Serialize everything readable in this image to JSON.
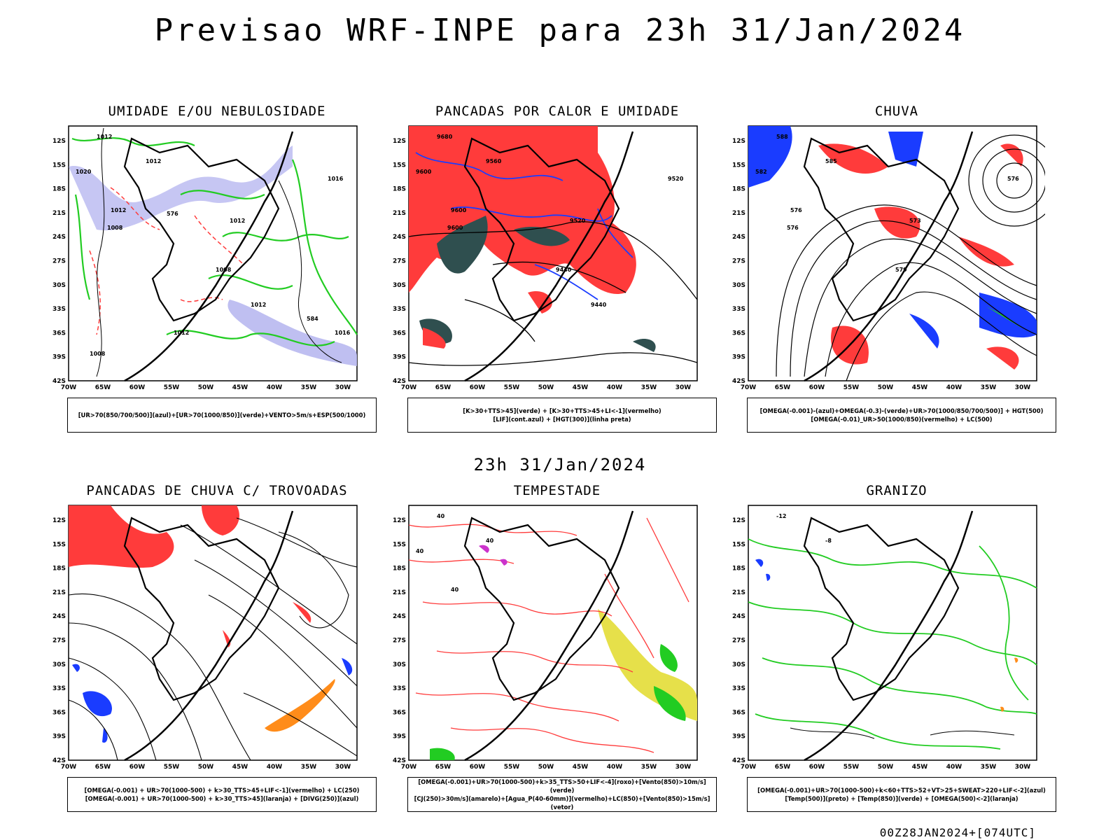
{
  "main_title": "Previsao WRF-INPE  para 23h 31/Jan/2024",
  "mid_title": "23h 31/Jan/2024",
  "footer": "00Z28JAN2024+[074UTC]",
  "lat_labels": [
    "12S",
    "15S",
    "18S",
    "21S",
    "24S",
    "27S",
    "30S",
    "33S",
    "36S",
    "39S",
    "42S"
  ],
  "lon_labels": [
    "70W",
    "65W",
    "60W",
    "55W",
    "50W",
    "45W",
    "40W",
    "35W",
    "30W"
  ],
  "panels": [
    {
      "title": "UMIDADE E/OU NEBULOSIDADE",
      "legend": [
        "[UR>70(850/700/500)](azul)+[UR>70(1000/850)](verde)+VENTO>5m/s+ESP(500/1000)"
      ],
      "contour_labels": [
        "1012",
        "1012",
        "1020",
        "1012",
        "1008",
        "1012",
        "1008",
        "1016",
        "1012",
        "576",
        "1012",
        "1008",
        "584",
        "1016"
      ]
    },
    {
      "title": "PANCADAS POR CALOR E UMIDADE",
      "legend": [
        "[K>30+TTS>45](verde) + [K>30+TTS>45+LI<-1](vermelho)",
        "[LIF](cont.azul) + [HGT(300)](linha preta)"
      ],
      "contour_labels": [
        "9680",
        "9560",
        "9600",
        "9600",
        "9600",
        "9520",
        "9440",
        "9520",
        "9440"
      ]
    },
    {
      "title": "CHUVA",
      "legend": [
        "[OMEGA(-0.001)-(azul)+OMEGA(-0.3)-(verde)+UR>70(1000/850/700/500)] + HGT(500)",
        "[OMEGA(-0.01)_UR>50(1000/850)(vermelho) + LC(500)"
      ],
      "contour_labels": [
        "588",
        "585",
        "582",
        "576",
        "576",
        "573",
        "579",
        "576"
      ]
    },
    {
      "title": "PANCADAS DE CHUVA C/ TROVOADAS",
      "legend": [
        "[OMEGA(-0.001) + UR>70(1000-500) + k>30_TTS>45+LIF<-1](vermelho) + LC(250)",
        "[OMEGA(-0.001) + UR>70(1000-500) + k>30_TTS>45](laranja) + [DIVG(250)](azul)"
      ],
      "contour_labels": []
    },
    {
      "title": "TEMPESTADE",
      "legend": [
        "[OMEGA(-0.001)+UR>70(1000-500)+k>35_TTS>50+LIF<-4](roxo)+[Vento(850)>10m/s](verde)",
        "[CJ(250)>30m/s](amarelo)+[Agua_P(40-60mm)](vermelho)+LC(850)+[Vento(850)>15m/s](vetor)"
      ],
      "contour_labels": [
        "40",
        "40",
        "40",
        "40"
      ]
    },
    {
      "title": "GRANIZO",
      "legend": [
        "[OMEGA(-0.001)+UR>70(1000-500)+k<60+TTS>52+VT>25+SWEAT>220+LIF<-2](azul)",
        "[Temp(500)](preto) + [Temp(850)](verde) + [OMEGA(500)<-2](laranja)"
      ],
      "contour_labels": [
        "-12",
        "-8"
      ]
    }
  ],
  "colors": {
    "red": "#ff3b3b",
    "green": "#22cc22",
    "blue": "#1a3cff",
    "lavender": "#b8b8f0",
    "teal": "#2f4f4f",
    "yellow": "#e6e04a",
    "orange": "#ff8c1a",
    "purple": "#cc33cc"
  }
}
